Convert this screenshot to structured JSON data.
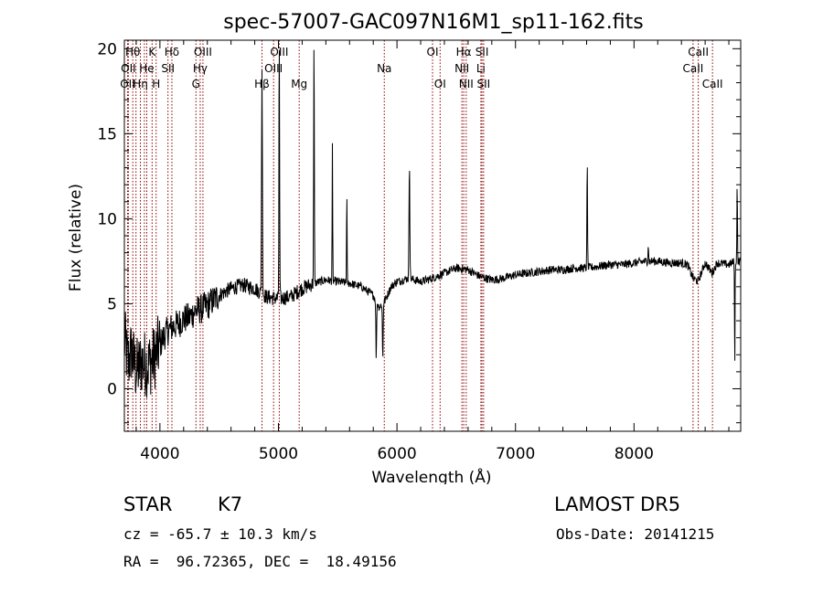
{
  "chart_data": {
    "type": "line",
    "title": "spec-57007-GAC097N16M1_sp11-162.fits",
    "xlabel": "Wavelength (Å)",
    "ylabel": "Flux (relative)",
    "xlim": [
      3700,
      8900
    ],
    "ylim": [
      -2.5,
      20.5
    ],
    "x_ticks": [
      4000,
      5000,
      6000,
      7000,
      8000
    ],
    "x_tick_labels": [
      "4000",
      "5000",
      "6000",
      "7000",
      "8000"
    ],
    "y_ticks": [
      0,
      5,
      10,
      15,
      20
    ],
    "y_tick_labels": [
      "0",
      "5",
      "10",
      "15",
      "20"
    ],
    "line_color": "#000000",
    "marker_color": "#8b0000",
    "spectrum_anchors": [
      [
        3700,
        3.0
      ],
      [
        3730,
        1.5
      ],
      [
        3760,
        2.2
      ],
      [
        3800,
        1.0
      ],
      [
        3850,
        1.6
      ],
      [
        3900,
        1.4
      ],
      [
        3950,
        1.8
      ],
      [
        4000,
        2.6
      ],
      [
        4050,
        3.3
      ],
      [
        4100,
        3.6
      ],
      [
        4150,
        3.8
      ],
      [
        4200,
        4.1
      ],
      [
        4250,
        4.2
      ],
      [
        4300,
        4.6
      ],
      [
        4350,
        4.7
      ],
      [
        4400,
        4.9
      ],
      [
        4450,
        5.2
      ],
      [
        4500,
        5.5
      ],
      [
        4600,
        5.9
      ],
      [
        4700,
        6.1
      ],
      [
        4800,
        5.9
      ],
      [
        4900,
        5.4
      ],
      [
        5000,
        5.3
      ],
      [
        5100,
        5.4
      ],
      [
        5200,
        5.9
      ],
      [
        5300,
        6.2
      ],
      [
        5400,
        6.4
      ],
      [
        5500,
        6.3
      ],
      [
        5600,
        6.2
      ],
      [
        5700,
        6.0
      ],
      [
        5800,
        5.5
      ],
      [
        5850,
        4.8
      ],
      [
        5900,
        5.2
      ],
      [
        5950,
        6.0
      ],
      [
        6000,
        6.3
      ],
      [
        6100,
        6.5
      ],
      [
        6200,
        6.3
      ],
      [
        6300,
        6.5
      ],
      [
        6400,
        6.8
      ],
      [
        6500,
        7.1
      ],
      [
        6600,
        7.0
      ],
      [
        6700,
        6.6
      ],
      [
        6800,
        6.4
      ],
      [
        6900,
        6.5
      ],
      [
        7000,
        6.7
      ],
      [
        7100,
        6.8
      ],
      [
        7200,
        6.9
      ],
      [
        7300,
        7.0
      ],
      [
        7400,
        7.0
      ],
      [
        7500,
        7.1
      ],
      [
        7600,
        7.1
      ],
      [
        7700,
        7.2
      ],
      [
        7800,
        7.3
      ],
      [
        7900,
        7.3
      ],
      [
        8000,
        7.4
      ],
      [
        8100,
        7.5
      ],
      [
        8200,
        7.5
      ],
      [
        8300,
        7.4
      ],
      [
        8400,
        7.4
      ],
      [
        8450,
        7.3
      ],
      [
        8500,
        6.5
      ],
      [
        8540,
        6.3
      ],
      [
        8600,
        7.4
      ],
      [
        8660,
        6.8
      ],
      [
        8700,
        7.4
      ],
      [
        8800,
        7.3
      ],
      [
        8850,
        7.5
      ],
      [
        8900,
        7.5
      ]
    ],
    "emission_lines": [
      [
        4861,
        18.5,
        10
      ],
      [
        5007,
        20.5,
        8
      ],
      [
        5300,
        20.5,
        8
      ],
      [
        5455,
        14.2,
        6
      ],
      [
        5577,
        11.5,
        6
      ],
      [
        6105,
        13.3,
        10
      ],
      [
        7605,
        13.4,
        7
      ],
      [
        8120,
        8.5,
        8
      ],
      [
        8870,
        12.5,
        6
      ]
    ],
    "absorption_lines": [
      [
        5825,
        1.7,
        8
      ],
      [
        5880,
        1.7,
        8
      ],
      [
        8850,
        0.8,
        6
      ]
    ],
    "line_markers": [
      {
        "x": 3727,
        "label": "OII",
        "row": 2
      },
      {
        "x": 3734,
        "label": "OII",
        "row": 1
      },
      {
        "x": 3771,
        "label": "Hθ",
        "row": 0
      },
      {
        "x": 3798,
        "label": "",
        "row": 0
      },
      {
        "x": 3835,
        "label": "Hη",
        "row": 2
      },
      {
        "x": 3869,
        "label": "",
        "row": 1
      },
      {
        "x": 3889,
        "label": "He",
        "row": 1
      },
      {
        "x": 3934,
        "label": "K",
        "row": 0
      },
      {
        "x": 3968,
        "label": "H",
        "row": 2
      },
      {
        "x": 4068,
        "label": "SII",
        "row": 1
      },
      {
        "x": 4101,
        "label": "Hδ",
        "row": 0
      },
      {
        "x": 4304,
        "label": "G",
        "row": 2
      },
      {
        "x": 4340,
        "label": "Hγ",
        "row": 1
      },
      {
        "x": 4363,
        "label": "OIII",
        "row": 0
      },
      {
        "x": 4861,
        "label": "Hβ",
        "row": 2
      },
      {
        "x": 4959,
        "label": "OIII",
        "row": 1
      },
      {
        "x": 5007,
        "label": "OIII",
        "row": 0
      },
      {
        "x": 5175,
        "label": "Mg",
        "row": 2
      },
      {
        "x": 5893,
        "label": "Na",
        "row": 1
      },
      {
        "x": 6300,
        "label": "OI",
        "row": 0
      },
      {
        "x": 6364,
        "label": "OI",
        "row": 2
      },
      {
        "x": 6548,
        "label": "NII",
        "row": 1
      },
      {
        "x": 6563,
        "label": "Hα",
        "row": 0
      },
      {
        "x": 6584,
        "label": "NII",
        "row": 2
      },
      {
        "x": 6708,
        "label": "Li",
        "row": 1
      },
      {
        "x": 6717,
        "label": "SII",
        "row": 0
      },
      {
        "x": 6731,
        "label": "SII",
        "row": 2
      },
      {
        "x": 8498,
        "label": "CaII",
        "row": 1
      },
      {
        "x": 8542,
        "label": "CaII",
        "row": 0
      },
      {
        "x": 8662,
        "label": "CaII",
        "row": 2
      }
    ]
  },
  "info": {
    "class": "STAR",
    "subclass": "K7",
    "survey": "LAMOST DR5",
    "cz": "cz = -65.7 ± 10.3 km/s",
    "obs_date": "Obs-Date: 20141215",
    "coords": "RA =  96.72365, DEC =  18.49156"
  }
}
